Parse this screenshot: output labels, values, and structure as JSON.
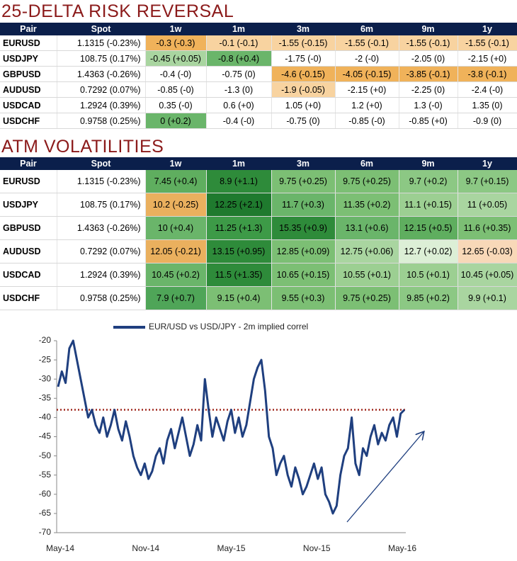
{
  "risk_reversal": {
    "title": "25-DELTA RISK REVERSAL",
    "header": [
      "Pair",
      "Spot",
      "1w",
      "1m",
      "3m",
      "6m",
      "9m",
      "1y"
    ],
    "rows": [
      [
        "EURUSD",
        "1.1315 (-0.23%)",
        "-0.3 (-0.3)",
        "-0.1 (-0.1)",
        "-1.55 (-0.15)",
        "-1.55 (-0.1)",
        "-1.55 (-0.1)",
        "-1.55 (-0.1)"
      ],
      [
        "USDJPY",
        "108.75 (0.17%)",
        "-0.45 (+0.05)",
        "-0.8 (+0.4)",
        "-1.75 (-0)",
        "-2 (-0)",
        "-2.05 (0)",
        "-2.15 (+0)"
      ],
      [
        "GBPUSD",
        "1.4363 (-0.26%)",
        "-0.4 (-0)",
        "-0.75 (0)",
        "-4.6 (-0.15)",
        "-4.05 (-0.15)",
        "-3.85 (-0.1)",
        "-3.8 (-0.1)"
      ],
      [
        "AUDUSD",
        "0.7292 (0.07%)",
        "-0.85 (-0)",
        "-1.3 (0)",
        "-1.9 (-0.05)",
        "-2.15 (+0)",
        "-2.25 (0)",
        "-2.4 (-0)"
      ],
      [
        "USDCAD",
        "1.2924 (0.39%)",
        "0.35 (-0)",
        "0.6 (+0)",
        "1.05 (+0)",
        "1.2 (+0)",
        "1.3 (-0)",
        "1.35 (0)"
      ],
      [
        "USDCHF",
        "0.9758 (0.25%)",
        "0 (+0.2)",
        "-0.4 (-0)",
        "-0.75 (0)",
        "-0.85 (-0)",
        "-0.85 (+0)",
        "-0.9 (0)"
      ]
    ],
    "colors": [
      [
        null,
        null,
        "#f0b25a",
        "#f8d3a0",
        "#f8d3a0",
        "#f8d3a0",
        "#f8d3a0",
        "#f8d3a0"
      ],
      [
        null,
        null,
        "#a9d5a0",
        "#6ab56a",
        null,
        null,
        null,
        null
      ],
      [
        null,
        null,
        null,
        null,
        "#f0b25a",
        "#f0b25a",
        "#f0b25a",
        "#f0b25a"
      ],
      [
        null,
        null,
        null,
        null,
        "#f8d3a0",
        null,
        null,
        null
      ],
      [
        null,
        null,
        null,
        null,
        null,
        null,
        null,
        null
      ],
      [
        null,
        null,
        "#6ab56a",
        null,
        null,
        null,
        null,
        null
      ]
    ]
  },
  "atm_volatilities": {
    "title": "ATM VOLATILITIES",
    "header": [
      "Pair",
      "Spot",
      "1w",
      "1m",
      "3m",
      "6m",
      "9m",
      "1y"
    ],
    "rows": [
      [
        "EURUSD",
        "1.1315 (-0.23%)",
        "7.45 (+0.4)",
        "8.9 (+1.1)",
        "9.75 (+0.25)",
        "9.75 (+0.25)",
        "9.7 (+0.2)",
        "9.7 (+0.15)"
      ],
      [
        "USDJPY",
        "108.75 (0.17%)",
        "10.2 (-0.25)",
        "12.25 (+2.1)",
        "11.7 (+0.3)",
        "11.35 (+0.2)",
        "11.1 (+0.15)",
        "11 (+0.05)"
      ],
      [
        "GBPUSD",
        "1.4363 (-0.26%)",
        "10 (+0.4)",
        "11.25 (+1.3)",
        "15.35 (+0.9)",
        "13.1 (+0.6)",
        "12.15 (+0.5)",
        "11.6 (+0.35)"
      ],
      [
        "AUDUSD",
        "0.7292 (0.07%)",
        "12.05 (-0.21)",
        "13.15 (+0.95)",
        "12.85 (+0.09)",
        "12.75 (+0.06)",
        "12.7 (+0.02)",
        "12.65 (-0.03)"
      ],
      [
        "USDCAD",
        "1.2924 (0.39%)",
        "10.45 (+0.2)",
        "11.5 (+1.35)",
        "10.65 (+0.15)",
        "10.55 (+0.1)",
        "10.5 (+0.1)",
        "10.45 (+0.05)"
      ],
      [
        "USDCHF",
        "0.9758 (0.25%)",
        "7.9 (+0.7)",
        "9.15 (+0.4)",
        "9.55 (+0.3)",
        "9.75 (+0.25)",
        "9.85 (+0.2)",
        "9.9 (+0.1)"
      ]
    ],
    "colors": [
      [
        null,
        null,
        "#5fae5f",
        "#2e8b3a",
        "#7cbf74",
        "#7cbf74",
        "#8cc884",
        "#8cc884"
      ],
      [
        null,
        null,
        "#eab05e",
        "#1f7a2e",
        "#6ab56a",
        "#7cbf74",
        "#9ccf92",
        "#a9d5a0"
      ],
      [
        null,
        null,
        "#6ab56a",
        "#3d9a47",
        "#2e8b3a",
        "#6ab56a",
        "#5fae5f",
        "#7cbf74"
      ],
      [
        null,
        null,
        "#eab05e",
        "#2e8b3a",
        "#7cbf74",
        "#a9d5a0",
        "#dcefd6",
        "#f8d8b8"
      ],
      [
        null,
        null,
        "#6ab56a",
        "#2e8b3a",
        "#7cbf74",
        "#9ccf92",
        "#9ccf92",
        "#a9d5a0"
      ],
      [
        null,
        null,
        "#4fa558",
        "#7cbf74",
        "#7cbf74",
        "#7cbf74",
        "#8cc884",
        "#a9d5a0"
      ]
    ]
  },
  "chart_data": {
    "type": "line",
    "xticks": [
      "May-14",
      "Nov-14",
      "May-15",
      "Nov-15",
      "May-16"
    ],
    "ylim": [
      -70,
      -20
    ],
    "yticks": [
      -20,
      -25,
      -30,
      -35,
      -40,
      -45,
      -50,
      -55,
      -60,
      -65,
      -70
    ],
    "reference_line": -38,
    "reference_color": "#a0281e",
    "series": [
      {
        "name": "EUR/USD vs USD/JPY - 2m implied correl",
        "color": "#1f3f7f",
        "values": [
          -32,
          -28,
          -31,
          -22,
          -20,
          -25,
          -30,
          -35,
          -40,
          -38,
          -42,
          -44,
          -40,
          -45,
          -42,
          -38,
          -43,
          -46,
          -41,
          -45,
          -50,
          -53,
          -55,
          -52,
          -56,
          -54,
          -50,
          -48,
          -52,
          -46,
          -43,
          -48,
          -44,
          -40,
          -45,
          -50,
          -47,
          -42,
          -46,
          -30,
          -38,
          -45,
          -40,
          -43,
          -46,
          -41,
          -38,
          -44,
          -40,
          -45,
          -42,
          -36,
          -30,
          -27,
          -25,
          -33,
          -45,
          -48,
          -55,
          -52,
          -50,
          -55,
          -58,
          -53,
          -56,
          -60,
          -58,
          -55,
          -52,
          -56,
          -53,
          -60,
          -62,
          -65,
          -63,
          -55,
          -50,
          -48,
          -40,
          -52,
          -55,
          -48,
          -50,
          -45,
          -42,
          -47,
          -44,
          -46,
          -42,
          -40,
          -45,
          -39,
          -38
        ]
      }
    ]
  }
}
